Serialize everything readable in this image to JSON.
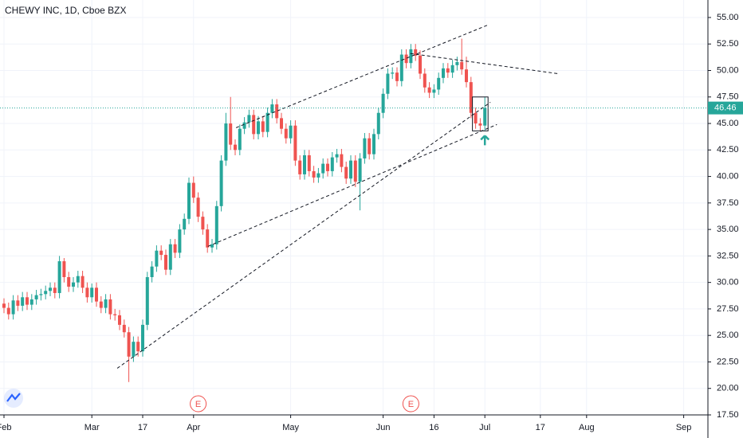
{
  "chart_data": {
    "type": "candlestick",
    "title": "CHEWY INC, 1D, Cboe BZX",
    "up_color": "#26a69a",
    "down_color": "#ef5350",
    "grid": true,
    "x": [
      0,
      1,
      2,
      3,
      4,
      5,
      6,
      7,
      8,
      9,
      10,
      11,
      12,
      13,
      14,
      15,
      16,
      17,
      18,
      19,
      20,
      21,
      22,
      23,
      24,
      25,
      26,
      27,
      28,
      29,
      30,
      31,
      32,
      33,
      34,
      35,
      36,
      37,
      38,
      39,
      40,
      41,
      42,
      43,
      44,
      45,
      46,
      47,
      48,
      49,
      50,
      51,
      52,
      53,
      54,
      55,
      56,
      57,
      58,
      59,
      60,
      61,
      62,
      63,
      64,
      65,
      66,
      67,
      68,
      69,
      70,
      71,
      72,
      73,
      74,
      75,
      76,
      77,
      78,
      79,
      80,
      81,
      82,
      83,
      84,
      85,
      86,
      87,
      88,
      89,
      90,
      91,
      92,
      93,
      94,
      95,
      96,
      97,
      98,
      99,
      100,
      101,
      102,
      103,
      104
    ],
    "open": [
      28.0,
      27.6,
      27.0,
      28.3,
      27.8,
      28.6,
      27.9,
      28.4,
      28.8,
      28.9,
      29.2,
      29.5,
      29.0,
      32.0,
      30.5,
      29.6,
      30.0,
      30.6,
      29.5,
      28.6,
      29.5,
      28.2,
      27.6,
      28.4,
      27.0,
      26.9,
      26.0,
      25.3,
      23.0,
      24.4,
      23.5,
      26.0,
      30.5,
      31.5,
      33.0,
      32.6,
      31.2,
      33.6,
      32.8,
      35.0,
      36.0,
      39.4,
      38.0,
      36.2,
      35.0,
      33.3,
      33.6,
      37.2,
      41.5,
      45.0,
      43.0,
      42.5,
      44.5,
      45.1,
      45.8,
      44.0,
      45.2,
      44.2,
      46.0,
      46.8,
      45.5,
      44.5,
      43.6,
      44.8,
      41.5,
      40.2,
      42.0,
      40.5,
      39.9,
      40.3,
      41.2,
      40.5,
      41.8,
      42.1,
      40.9,
      39.8,
      41.5,
      39.5,
      41.7,
      43.6,
      42.1,
      44.0,
      46.0,
      47.8,
      49.7,
      49.8,
      49.0,
      51.5,
      50.7,
      52.0,
      51.4,
      49.7,
      48.4,
      47.9,
      48.2,
      49.3,
      50.2,
      49.8,
      50.5,
      50.8,
      50.1,
      48.9,
      46.0,
      45.0,
      44.8
    ],
    "high": [
      28.5,
      28.1,
      28.8,
      28.8,
      29.1,
      29.1,
      28.9,
      29.3,
      29.4,
      29.7,
      30.0,
      30.0,
      32.5,
      32.3,
      31.0,
      30.5,
      31.1,
      31.1,
      30.0,
      29.9,
      30.0,
      28.7,
      28.9,
      28.9,
      27.5,
      27.4,
      26.5,
      25.8,
      24.9,
      24.9,
      26.5,
      31.0,
      32.0,
      33.5,
      33.5,
      33.1,
      34.1,
      34.1,
      35.5,
      36.5,
      39.9,
      40.0,
      38.5,
      36.7,
      35.5,
      34.1,
      37.7,
      42.0,
      46.0,
      47.5,
      43.5,
      44.9,
      45.6,
      46.3,
      46.3,
      45.7,
      45.7,
      46.5,
      47.3,
      47.3,
      46.0,
      45.0,
      45.3,
      45.3,
      42.0,
      42.5,
      42.5,
      41.0,
      40.8,
      41.7,
      41.7,
      42.3,
      42.6,
      42.6,
      41.4,
      42.0,
      42.0,
      42.2,
      44.1,
      44.1,
      44.5,
      46.5,
      48.3,
      50.2,
      50.3,
      50.3,
      52.0,
      52.0,
      52.5,
      52.5,
      51.9,
      50.2,
      48.9,
      48.7,
      49.8,
      50.7,
      50.7,
      51.0,
      51.3,
      53.0,
      51.3,
      49.4,
      46.5,
      45.5,
      47.5
    ],
    "low": [
      27.1,
      26.5,
      26.5,
      27.3,
      27.3,
      27.4,
      27.4,
      27.9,
      28.3,
      28.4,
      28.7,
      28.5,
      28.5,
      30.0,
      29.1,
      29.1,
      29.5,
      29.0,
      28.1,
      28.1,
      27.7,
      27.1,
      27.1,
      26.5,
      26.4,
      25.5,
      24.8,
      20.6,
      22.5,
      23.0,
      23.0,
      25.5,
      30.0,
      31.0,
      32.1,
      30.7,
      30.7,
      32.3,
      32.3,
      34.5,
      35.5,
      37.5,
      35.7,
      34.5,
      32.8,
      32.8,
      33.1,
      36.7,
      41.0,
      42.5,
      42.0,
      42.0,
      44.0,
      44.6,
      43.5,
      43.5,
      43.7,
      43.7,
      45.5,
      45.0,
      44.0,
      43.1,
      43.1,
      41.0,
      39.7,
      39.7,
      40.0,
      39.4,
      39.4,
      39.8,
      40.0,
      40.0,
      41.3,
      40.4,
      39.3,
      39.3,
      39.0,
      36.8,
      41.2,
      41.6,
      41.6,
      43.5,
      45.5,
      47.3,
      49.2,
      48.5,
      48.5,
      50.2,
      50.2,
      50.9,
      49.2,
      47.9,
      47.4,
      47.4,
      47.7,
      48.8,
      49.3,
      49.3,
      50.0,
      49.6,
      48.4,
      45.5,
      44.5,
      44.3,
      44.3
    ],
    "close": [
      27.6,
      27.0,
      28.3,
      27.8,
      28.6,
      27.9,
      28.4,
      28.8,
      28.9,
      29.2,
      29.5,
      29.0,
      32.0,
      30.5,
      29.6,
      30.0,
      30.6,
      29.5,
      28.6,
      29.5,
      28.2,
      27.6,
      28.4,
      27.0,
      26.9,
      26.0,
      25.3,
      23.0,
      24.4,
      23.5,
      26.0,
      30.5,
      31.5,
      33.0,
      32.6,
      31.2,
      33.6,
      32.8,
      35.0,
      36.0,
      39.4,
      38.0,
      36.2,
      35.0,
      33.3,
      33.6,
      37.2,
      41.5,
      45.0,
      43.0,
      42.5,
      44.5,
      45.1,
      45.8,
      44.0,
      45.2,
      44.2,
      46.0,
      46.8,
      45.5,
      44.5,
      43.6,
      44.8,
      41.5,
      40.2,
      42.0,
      40.5,
      39.9,
      40.3,
      41.2,
      40.5,
      41.8,
      42.1,
      40.9,
      39.8,
      41.5,
      39.5,
      41.7,
      43.6,
      42.1,
      44.0,
      46.0,
      47.8,
      49.7,
      49.8,
      49.0,
      51.5,
      50.7,
      52.0,
      51.4,
      49.7,
      48.4,
      47.9,
      48.2,
      49.3,
      50.2,
      49.8,
      50.5,
      50.8,
      50.1,
      48.9,
      46.0,
      45.0,
      44.8,
      46.46
    ],
    "xlim": [
      -0.86,
      152.24
    ],
    "xticks": [
      {
        "value": 0,
        "label": "Feb"
      },
      {
        "value": 19,
        "label": "Mar"
      },
      {
        "value": 30,
        "label": "17"
      },
      {
        "value": 41,
        "label": "Apr"
      },
      {
        "value": 62,
        "label": "May"
      },
      {
        "value": 82,
        "label": "Jun"
      },
      {
        "value": 93,
        "label": "16"
      },
      {
        "value": 104,
        "label": "Jul"
      },
      {
        "value": 116,
        "label": "17"
      },
      {
        "value": 126,
        "label": "Aug"
      },
      {
        "value": 147,
        "label": "Sep"
      }
    ],
    "ylim": [
      17.5,
      56.65
    ],
    "yticks": [
      {
        "value": 17.5,
        "label": "17.50"
      },
      {
        "value": 20,
        "label": "20.00"
      },
      {
        "value": 22.5,
        "label": "22.50"
      },
      {
        "value": 25,
        "label": "25.00"
      },
      {
        "value": 27.5,
        "label": "27.50"
      },
      {
        "value": 30,
        "label": "30.00"
      },
      {
        "value": 32.5,
        "label": "32.50"
      },
      {
        "value": 35,
        "label": "35.00"
      },
      {
        "value": 37.5,
        "label": "37.50"
      },
      {
        "value": 40,
        "label": "40.00"
      },
      {
        "value": 42.5,
        "label": "42.50"
      },
      {
        "value": 45,
        "label": "45.00"
      },
      {
        "value": 47.5,
        "label": "47.50"
      },
      {
        "value": 50,
        "label": "50.00"
      },
      {
        "value": 52.5,
        "label": "52.50"
      },
      {
        "value": 55,
        "label": "55.00"
      }
    ],
    "events": [
      {
        "x": 42,
        "label": "E"
      },
      {
        "x": 88,
        "label": "E"
      }
    ],
    "trendlines": [
      {
        "x": [
          24.5,
          105.2
        ],
        "y": [
          21.9,
          47.0
        ]
      },
      {
        "x": [
          44.1,
          106.6
        ],
        "y": [
          33.4,
          44.9
        ]
      },
      {
        "x": [
          50.2,
          104.7
        ],
        "y": [
          44.6,
          54.3
        ]
      },
      {
        "x": [
          87.9,
          119.8
        ],
        "y": [
          51.6,
          49.7
        ]
      }
    ]
  }
}
